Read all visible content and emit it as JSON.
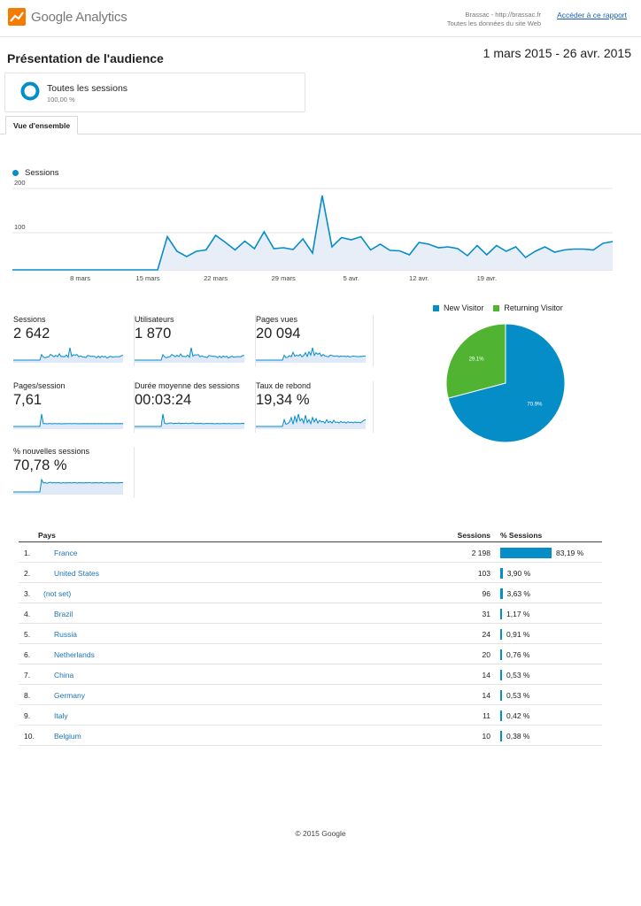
{
  "header": {
    "logo_text": "Google Analytics",
    "site_line1": "Brassac - http://brassac.fr",
    "site_line2": "Toutes les données du site Web",
    "report_link": "Accéder à ce rapport"
  },
  "page": {
    "title": "Présentation de l'audience",
    "date_range": "1 mars 2015 - 26 avr. 2015"
  },
  "segment": {
    "name": "Toutes les sessions",
    "percent": "100,00 %"
  },
  "tabs": [
    {
      "label": "Vue d'ensemble",
      "active": true
    }
  ],
  "colors": {
    "accent": "#058dc7",
    "returning": "#50b432",
    "area_fill": "#e8eef8",
    "link": "#1a73b8"
  },
  "chart_data": [
    {
      "type": "area",
      "series": [
        {
          "name": "Sessions",
          "values": [
            0,
            0,
            0,
            0,
            0,
            0,
            0,
            0,
            0,
            0,
            0,
            0,
            0,
            0,
            0,
            0,
            75,
            42,
            30,
            42,
            45,
            78,
            62,
            45,
            65,
            48,
            86,
            48,
            50,
            46,
            70,
            38,
            168,
            52,
            73,
            68,
            75,
            45,
            58,
            44,
            43,
            34,
            62,
            58,
            50,
            52,
            48,
            32,
            55,
            34,
            55,
            42,
            52,
            28,
            42,
            52,
            40,
            45,
            47,
            47,
            45,
            60,
            64
          ]
        }
      ],
      "x_tick_labels": [
        "8 mars",
        "15 mars",
        "22 mars",
        "29 mars",
        "5 avr.",
        "12 avr.",
        "19 avr."
      ],
      "y_tick_labels": [
        "100",
        "200"
      ],
      "ylim": [
        0,
        200
      ],
      "legend_placement": "top-left",
      "grid": true
    },
    {
      "type": "pie",
      "series": [
        {
          "name": "New Visitor",
          "value": 70.9,
          "label": "70.9%",
          "color": "#058dc7"
        },
        {
          "name": "Returning Visitor",
          "value": 29.1,
          "label": "29.1%",
          "color": "#50b432"
        }
      ],
      "legend_placement": "top"
    }
  ],
  "metrics": [
    {
      "label": "Sessions",
      "value": "2 642",
      "spark": [
        0,
        0,
        0,
        0,
        0,
        0,
        0,
        0,
        0,
        0,
        0,
        0,
        0,
        0,
        0,
        0,
        75,
        42,
        30,
        42,
        45,
        78,
        62,
        45,
        65,
        48,
        86,
        48,
        50,
        46,
        70,
        38,
        168,
        52,
        73,
        68,
        75,
        45,
        58,
        44,
        43,
        34,
        62,
        58,
        50,
        52,
        48,
        32,
        55,
        34,
        55,
        42,
        52,
        28,
        42,
        52,
        40,
        45,
        47,
        47,
        45,
        60,
        64
      ]
    },
    {
      "label": "Utilisateurs",
      "value": "1 870",
      "spark": [
        0,
        0,
        0,
        0,
        0,
        0,
        0,
        0,
        0,
        0,
        0,
        0,
        0,
        0,
        0,
        0,
        62,
        36,
        26,
        36,
        39,
        64,
        52,
        38,
        55,
        40,
        70,
        40,
        42,
        38,
        58,
        32,
        140,
        44,
        60,
        57,
        62,
        38,
        48,
        37,
        36,
        28,
        52,
        48,
        42,
        44,
        40,
        27,
        46,
        28,
        46,
        35,
        44,
        24,
        35,
        44,
        33,
        38,
        39,
        39,
        38,
        50,
        53
      ]
    },
    {
      "label": "Pages vues",
      "value": "20 094",
      "spark": [
        0,
        0,
        0,
        0,
        0,
        0,
        0,
        0,
        0,
        0,
        0,
        0,
        0,
        0,
        0,
        0,
        60,
        30,
        35,
        55,
        40,
        95,
        48,
        60,
        50,
        70,
        40,
        55,
        90,
        45,
        100,
        60,
        150,
        58,
        90,
        70,
        85,
        48,
        68,
        52,
        45,
        40,
        60,
        55,
        48,
        50,
        52,
        40,
        50,
        45,
        48,
        42,
        50,
        38,
        45,
        50,
        45,
        44,
        42,
        45,
        44,
        50,
        48
      ]
    },
    {
      "label": "Pages/session",
      "value": "7,61",
      "spark": [
        0,
        0,
        0,
        0,
        0,
        0,
        0,
        0,
        0,
        0,
        0,
        0,
        0,
        0,
        0,
        0,
        130,
        30,
        30,
        28,
        30,
        30,
        28,
        30,
        30,
        28,
        30,
        28,
        28,
        30,
        29,
        30,
        30,
        29,
        30,
        30,
        29,
        28,
        30,
        29,
        30,
        29,
        30,
        29,
        30,
        29,
        30,
        29,
        30,
        29,
        30,
        29,
        30,
        29,
        30,
        29,
        30,
        29,
        30,
        29,
        30,
        29,
        30
      ]
    },
    {
      "label": "Durée moyenne des sessions",
      "value": "00:03:24",
      "spark": [
        0,
        0,
        0,
        0,
        0,
        0,
        0,
        0,
        0,
        0,
        0,
        0,
        0,
        0,
        0,
        0,
        140,
        35,
        30,
        32,
        40,
        38,
        32,
        36,
        34,
        40,
        32,
        36,
        33,
        38,
        32,
        34,
        36,
        40,
        33,
        34,
        32,
        35,
        34,
        30,
        33,
        35,
        32,
        33,
        34,
        30,
        32,
        34,
        30,
        33,
        32,
        34,
        31,
        33,
        32,
        30,
        33,
        32,
        34,
        31,
        33,
        35,
        34
      ]
    },
    {
      "label": "Taux de rebond",
      "value": "19,34 %",
      "spark": [
        0,
        0,
        0,
        0,
        0,
        0,
        0,
        0,
        0,
        0,
        0,
        0,
        0,
        0,
        0,
        0,
        60,
        20,
        25,
        40,
        80,
        20,
        90,
        40,
        110,
        50,
        70,
        30,
        100,
        35,
        60,
        25,
        80,
        40,
        70,
        30,
        55,
        40,
        45,
        30,
        60,
        35,
        45,
        30,
        55,
        35,
        40,
        30,
        45,
        35,
        40,
        30,
        42,
        35,
        38,
        32,
        40,
        35,
        38,
        32,
        42,
        55,
        60
      ]
    },
    {
      "label": "% nouvelles sessions",
      "value": "70,78 %",
      "spark": [
        0,
        0,
        0,
        0,
        0,
        0,
        0,
        0,
        0,
        0,
        0,
        0,
        0,
        0,
        0,
        0,
        100,
        72,
        75,
        70,
        74,
        78,
        72,
        76,
        73,
        74,
        75,
        70,
        76,
        72,
        74,
        73,
        75,
        72,
        74,
        76,
        71,
        75,
        73,
        74,
        72,
        75,
        73,
        76,
        72,
        74,
        73,
        75,
        72,
        74,
        76,
        71,
        73,
        75,
        72,
        74,
        73,
        75,
        72,
        74,
        73,
        76,
        74
      ]
    }
  ],
  "table": {
    "headers": {
      "dimension": "Pays",
      "sessions": "Sessions",
      "percent": "% Sessions"
    },
    "rows": [
      {
        "index": "1.",
        "country": "France",
        "sessions": "2 198",
        "pct_label": "83,19 %",
        "pct": 83.19
      },
      {
        "index": "2.",
        "country": "United States",
        "sessions": "103",
        "pct_label": "3,90 %",
        "pct": 3.9
      },
      {
        "index": "3.",
        "country": "(not set)",
        "sessions": "96",
        "pct_label": "3,63 %",
        "pct": 3.63
      },
      {
        "index": "4.",
        "country": "Brazil",
        "sessions": "31",
        "pct_label": "1,17 %",
        "pct": 1.17
      },
      {
        "index": "5.",
        "country": "Russia",
        "sessions": "24",
        "pct_label": "0,91 %",
        "pct": 0.91
      },
      {
        "index": "6.",
        "country": "Netherlands",
        "sessions": "20",
        "pct_label": "0,76 %",
        "pct": 0.76
      },
      {
        "index": "7.",
        "country": "China",
        "sessions": "14",
        "pct_label": "0,53 %",
        "pct": 0.53
      },
      {
        "index": "8.",
        "country": "Germany",
        "sessions": "14",
        "pct_label": "0,53 %",
        "pct": 0.53
      },
      {
        "index": "9.",
        "country": "Italy",
        "sessions": "11",
        "pct_label": "0,42 %",
        "pct": 0.42
      },
      {
        "index": "10.",
        "country": "Belgium",
        "sessions": "10",
        "pct_label": "0,38 %",
        "pct": 0.38
      }
    ]
  },
  "footer": {
    "copyright": "© 2015 Google"
  }
}
